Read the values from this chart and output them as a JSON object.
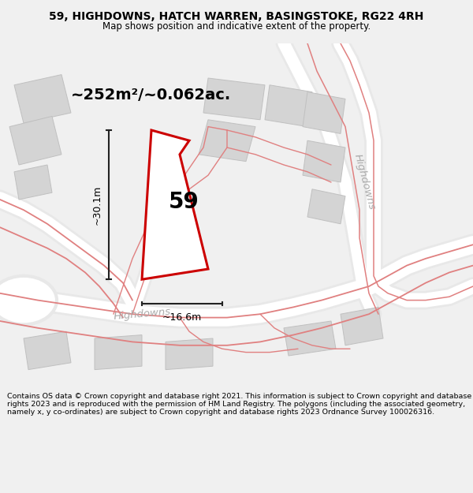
{
  "title": "59, HIGHDOWNS, HATCH WARREN, BASINGSTOKE, RG22 4RH",
  "subtitle": "Map shows position and indicative extent of the property.",
  "footer": "Contains OS data © Crown copyright and database right 2021. This information is subject to Crown copyright and database rights 2023 and is reproduced with the permission of HM Land Registry. The polygons (including the associated geometry, namely x, y co-ordinates) are subject to Crown copyright and database rights 2023 Ordnance Survey 100026316.",
  "bg_color": "#f0f0f0",
  "map_bg": "#f8f8f8",
  "building_color": "#d4d4d4",
  "building_edge": "#c0c0c0",
  "road_fill": "#e8e8e8",
  "road_line_color": "#e08080",
  "highlight_color": "#cc0000",
  "dim_line_color": "#222222",
  "text_color": "#333333",
  "street_text_color": "#aaaaaa",
  "area_label": "~252m²/~0.062ac.",
  "property_number": "59",
  "dim_height": "~30.1m",
  "dim_width": "~16.6m",
  "street_label_bottom": "Highdowns",
  "street_label_right": "Highdowns",
  "figsize": [
    6.0,
    6.25
  ],
  "dpi": 100
}
